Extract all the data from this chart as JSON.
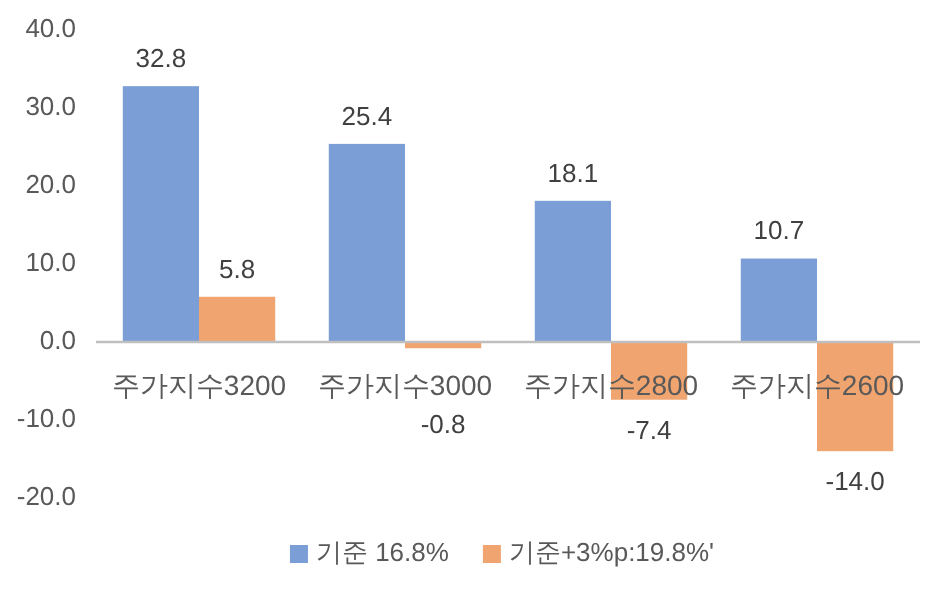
{
  "chart_data": {
    "type": "bar",
    "categories": [
      "주가지수3200",
      "주가지수3000",
      "주가지수2800",
      "주가지수2600"
    ],
    "series": [
      {
        "name": "기준 16.8%",
        "color": "#7b9ed6",
        "values": [
          32.8,
          25.4,
          18.1,
          10.7
        ],
        "value_labels": [
          "32.8",
          "25.4",
          "18.1",
          "10.7"
        ]
      },
      {
        "name": "기준+3%p:19.8%'",
        "color": "#f0a46f",
        "values": [
          5.8,
          -0.8,
          -7.4,
          -14.0
        ],
        "value_labels": [
          "5.8",
          "-0.8",
          "-7.4",
          "-14.0"
        ]
      }
    ],
    "ylim": [
      -20,
      40
    ],
    "yticks": [
      {
        "value": -20,
        "label": "-20.0"
      },
      {
        "value": -10,
        "label": "-10.0"
      },
      {
        "value": 0,
        "label": "0.0"
      },
      {
        "value": 10,
        "label": "10.0"
      },
      {
        "value": 20,
        "label": "20.0"
      },
      {
        "value": 30,
        "label": "30.0"
      },
      {
        "value": 40,
        "label": "40.0"
      }
    ],
    "grid": false,
    "legend": "bottom"
  }
}
